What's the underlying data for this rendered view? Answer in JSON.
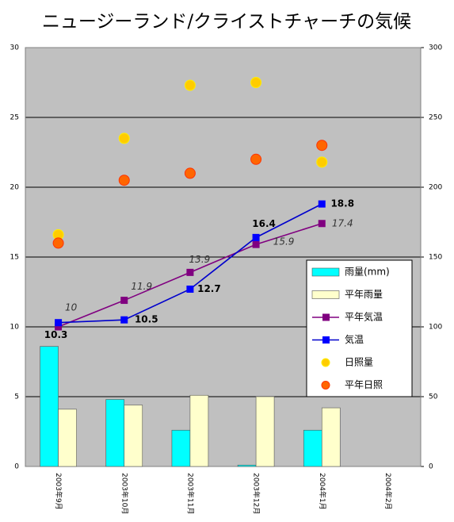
{
  "chart_data": {
    "type": "combo",
    "title": "ニュージーランド/クライストチャーチの気候",
    "categories": [
      "2003年9月",
      "2003年10月",
      "2003年11月",
      "2003年12月",
      "2004年1月",
      "2004年2月"
    ],
    "ylim": [
      0,
      30
    ],
    "yticks": [
      0,
      5,
      10,
      15,
      20,
      25,
      30
    ],
    "y2lim": [
      0,
      300
    ],
    "y2ticks": [
      0,
      50,
      100,
      150,
      200,
      250,
      300
    ],
    "grid": true,
    "series": [
      {
        "name": "雨量(mm)",
        "type": "bar",
        "axis": "y2",
        "color": "#00ffff",
        "values": [
          86,
          48,
          26,
          1,
          26,
          null
        ]
      },
      {
        "name": "平年雨量",
        "type": "bar",
        "axis": "y2",
        "color": "#ffffcc",
        "values": [
          41,
          44,
          51,
          50,
          42,
          null
        ]
      },
      {
        "name": "平年気温",
        "type": "line",
        "axis": "y",
        "color": "#800080",
        "values": [
          10,
          11.9,
          13.9,
          15.9,
          17.4,
          null
        ]
      },
      {
        "name": "気温",
        "type": "line",
        "axis": "y",
        "color": "#0000cc",
        "values": [
          10.3,
          10.5,
          12.7,
          16.4,
          18.8,
          null
        ]
      },
      {
        "name": "日照量",
        "type": "scatter",
        "axis": "y2",
        "color": "#ffcc00",
        "values": [
          166,
          235,
          273,
          275,
          218,
          null
        ]
      },
      {
        "name": "平年日照",
        "type": "scatter",
        "axis": "y2",
        "color": "#ff6600",
        "values": [
          160,
          205,
          210,
          220,
          230,
          null
        ]
      }
    ]
  }
}
